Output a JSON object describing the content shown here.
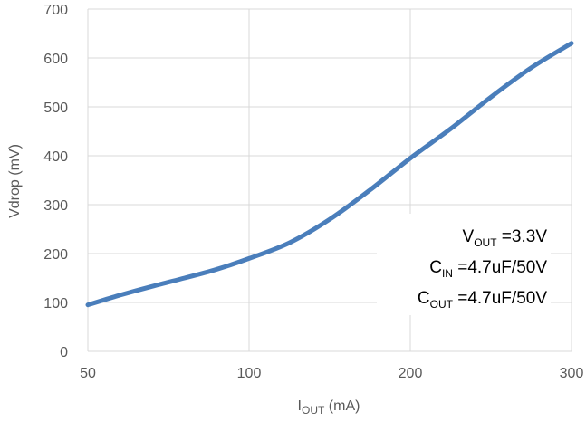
{
  "chart_data": {
    "type": "line",
    "x_scale": "categorical-equal-spacing",
    "categories": [
      "50",
      "100",
      "200",
      "300"
    ],
    "ylabel": "Vdrop (mV)",
    "xlabel_main": "I",
    "xlabel_sub": "OUT",
    "xlabel_unit": " (mA)",
    "ylim": [
      0,
      700
    ],
    "y_ticks": [
      "0",
      "100",
      "200",
      "300",
      "400",
      "500",
      "600",
      "700"
    ],
    "grid": true,
    "line_color": "#4A7EBB",
    "series": [
      {
        "x": [
          50,
          60,
          70,
          80,
          90,
          100,
          125,
          150,
          175,
          200,
          225,
          250,
          275,
          300
        ],
        "y": [
          95,
          115,
          133,
          150,
          168,
          190,
          222,
          270,
          330,
          395,
          455,
          520,
          580,
          630
        ]
      }
    ],
    "annotations": [
      {
        "main": "V",
        "sub": "OUT",
        "rest": " =3.3V"
      },
      {
        "main": "C",
        "sub": "IN",
        "rest": " =4.7uF/50V"
      },
      {
        "main": "C",
        "sub": "OUT",
        "rest": " =4.7uF/50V"
      }
    ]
  }
}
